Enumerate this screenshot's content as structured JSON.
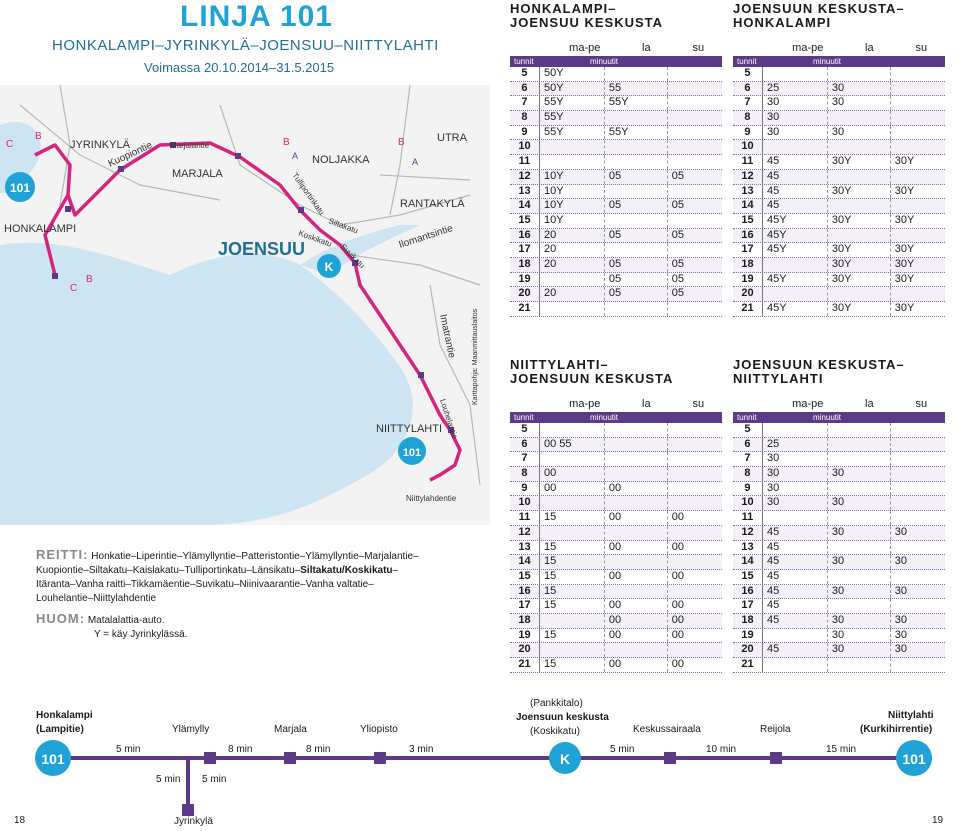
{
  "header": {
    "title": "LINJA 101",
    "subtitle": "HONKALAMPI–JYRINKYLÄ–JOENSUU–NIITTYLAHTI",
    "validity": "Voimassa 20.10.2014–31.5.2015"
  },
  "map": {
    "labels": {
      "jyrinkyla": "JYRINKYLÄ",
      "honkalampi": "HONKALAMPI",
      "marjala": "MARJALA",
      "joensuu": "JOENSUU",
      "noljakka": "NOLJAKKA",
      "utra": "UTRA",
      "rantakyla": "RANTAKYLÄ",
      "niittylahti": "NIITTYLAHTI",
      "kuopiontie": "Kuopiontie",
      "marjalantie": "Marjalantie",
      "tulliportinkatu": "Tulliportinkatu",
      "siltakatu": "Siltakatu",
      "koskikatu": "Koskikatu",
      "suvikatu": "Suvikatu",
      "ilomantsintie": "Ilomantsintie",
      "imatrantie": "Imatrantie",
      "louhelantie": "Louhelantie",
      "niittylahdentie": "Niittylahdentie",
      "credit": "Karttapohja: Maanmittauslaitos",
      "marker_b": "B",
      "marker_c": "C",
      "marker_a": "A",
      "marker_k": "K",
      "marker_101": "101"
    }
  },
  "route": {
    "label": "REITTI:",
    "text_a": "Honkatie–Liperintie–Ylämyllyntie–Patteristontie–Ylämyllyntie–Marjalantie–",
    "text_b1": "Kuopiontie–Siltakatu–Kaislakatu–Tulliportinkatu–Länsikatu–",
    "text_b_bold": "Siltakatu/Koskikatu",
    "text_b2": "–",
    "text_c": "Itäranta–Vanha raitti–Tikkamäentie–Suvikatu–Niinivaarantie–Vanha valtatie–",
    "text_d": "Louhelantie–Niittylahdentie"
  },
  "note": {
    "label": "HUOM:",
    "line1": "Matalalattia-auto.",
    "line2": "Y = käy Jyrinkylässä."
  },
  "timetables": [
    {
      "title1": "HONKALAMPI–",
      "title2": "JOENSUU KESKUSTA",
      "days": [
        "ma-pe",
        "la",
        "su"
      ],
      "head": [
        "tunnit",
        "minuutit"
      ],
      "rows": [
        [
          "5",
          "50Y",
          "",
          ""
        ],
        [
          "6",
          "50Y",
          "55",
          ""
        ],
        [
          "7",
          "55Y",
          "55Y",
          ""
        ],
        [
          "8",
          "55Y",
          "",
          ""
        ],
        [
          "9",
          "55Y",
          "55Y",
          ""
        ],
        [
          "10",
          "",
          "",
          ""
        ],
        [
          "11",
          "",
          "",
          ""
        ],
        [
          "12",
          "10Y",
          "05",
          "05"
        ],
        [
          "13",
          "10Y",
          "",
          ""
        ],
        [
          "14",
          "10Y",
          "05",
          "05"
        ],
        [
          "15",
          "10Y",
          "",
          ""
        ],
        [
          "16",
          "20",
          "05",
          "05"
        ],
        [
          "17",
          "20",
          "",
          ""
        ],
        [
          "18",
          "20",
          "05",
          "05"
        ],
        [
          "19",
          "",
          "05",
          "05"
        ],
        [
          "20",
          "20",
          "05",
          "05"
        ],
        [
          "21",
          "",
          "",
          ""
        ]
      ]
    },
    {
      "title1": "JOENSUUN KESKUSTA–",
      "title2": "HONKALAMPI",
      "days": [
        "ma-pe",
        "la",
        "su"
      ],
      "head": [
        "tunnit",
        "minuutit"
      ],
      "rows": [
        [
          "5",
          "",
          "",
          ""
        ],
        [
          "6",
          "25",
          "30",
          ""
        ],
        [
          "7",
          "30",
          "30",
          ""
        ],
        [
          "8",
          "30",
          "",
          ""
        ],
        [
          "9",
          "30",
          "30",
          ""
        ],
        [
          "10",
          "",
          "",
          ""
        ],
        [
          "11",
          "45",
          "30Y",
          "30Y"
        ],
        [
          "12",
          "45",
          "",
          ""
        ],
        [
          "13",
          "45",
          "30Y",
          "30Y"
        ],
        [
          "14",
          "45",
          "",
          ""
        ],
        [
          "15",
          "45Y",
          "30Y",
          "30Y"
        ],
        [
          "16",
          "45Y",
          "",
          ""
        ],
        [
          "17",
          "45Y",
          "30Y",
          "30Y"
        ],
        [
          "18",
          "",
          "30Y",
          "30Y"
        ],
        [
          "19",
          "45Y",
          "30Y",
          "30Y"
        ],
        [
          "20",
          "",
          "",
          ""
        ],
        [
          "21",
          "45Y",
          "30Y",
          "30Y"
        ]
      ]
    },
    {
      "title1": "NIITTYLAHTI–",
      "title2": "JOENSUUN KESKUSTA",
      "days": [
        "ma-pe",
        "la",
        "su"
      ],
      "head": [
        "tunnit",
        "minuutit"
      ],
      "rows": [
        [
          "5",
          "",
          "",
          ""
        ],
        [
          "6",
          "00 55",
          "",
          ""
        ],
        [
          "7",
          "",
          "",
          ""
        ],
        [
          "8",
          "00",
          "",
          ""
        ],
        [
          "9",
          "00",
          "00",
          ""
        ],
        [
          "10",
          "",
          "",
          ""
        ],
        [
          "11",
          "15",
          "00",
          "00"
        ],
        [
          "12",
          "",
          "",
          ""
        ],
        [
          "13",
          "15",
          "00",
          "00"
        ],
        [
          "14",
          "15",
          "",
          ""
        ],
        [
          "15",
          "15",
          "00",
          "00"
        ],
        [
          "16",
          "15",
          "",
          ""
        ],
        [
          "17",
          "15",
          "00",
          "00"
        ],
        [
          "18",
          "",
          "00",
          "00"
        ],
        [
          "19",
          "15",
          "00",
          "00"
        ],
        [
          "20",
          "",
          "",
          ""
        ],
        [
          "21",
          "15",
          "00",
          "00"
        ]
      ]
    },
    {
      "title1": "JOENSUUN KESKUSTA–",
      "title2": "NIITTYLAHTI",
      "days": [
        "ma-pe",
        "la",
        "su"
      ],
      "head": [
        "tunnit",
        "minuutit"
      ],
      "rows": [
        [
          "5",
          "",
          "",
          ""
        ],
        [
          "6",
          "25",
          "",
          ""
        ],
        [
          "7",
          "30",
          "",
          ""
        ],
        [
          "8",
          "30",
          "30",
          ""
        ],
        [
          "9",
          "30",
          "",
          ""
        ],
        [
          "10",
          "30",
          "30",
          ""
        ],
        [
          "11",
          "",
          "",
          ""
        ],
        [
          "12",
          "45",
          "30",
          "30"
        ],
        [
          "13",
          "45",
          "",
          ""
        ],
        [
          "14",
          "45",
          "30",
          "30"
        ],
        [
          "15",
          "45",
          "",
          ""
        ],
        [
          "16",
          "45",
          "30",
          "30"
        ],
        [
          "17",
          "45",
          "",
          ""
        ],
        [
          "18",
          "45",
          "30",
          "30"
        ],
        [
          "19",
          "",
          "30",
          "30"
        ],
        [
          "20",
          "45",
          "30",
          "30"
        ],
        [
          "21",
          "",
          "",
          ""
        ]
      ]
    }
  ],
  "stops": {
    "honkalampi": "Honkalampi",
    "honkalampi2": "(Lampitie)",
    "ylamylly": "Ylämylly",
    "marjala": "Marjala",
    "yliopisto": "Yliopisto",
    "pankkitalo": "(Pankkitalo)",
    "joensuu": "Joensuun keskusta",
    "koskikatu": "(Koskikatu)",
    "keskussairaala": "Keskussairaala",
    "reijola": "Reijola",
    "niittylahti": "Niittylahti",
    "kurkihirrentie": "(Kurkihirrentie)",
    "jyrinkyla": "Jyrinkylä",
    "t1": "5 min",
    "t2": "8 min",
    "t3": "8 min",
    "t4": "3 min",
    "t5": "5 min",
    "t6": "10 min",
    "t7": "15 min",
    "b1": "5 min",
    "b2": "5 min",
    "badge_101": "101",
    "badge_k": "K"
  },
  "pages": {
    "left": "18",
    "right": "19"
  },
  "colors": {
    "accent": "#1fa3d7",
    "route": "#d6247e",
    "table_header": "#5c3a85"
  }
}
